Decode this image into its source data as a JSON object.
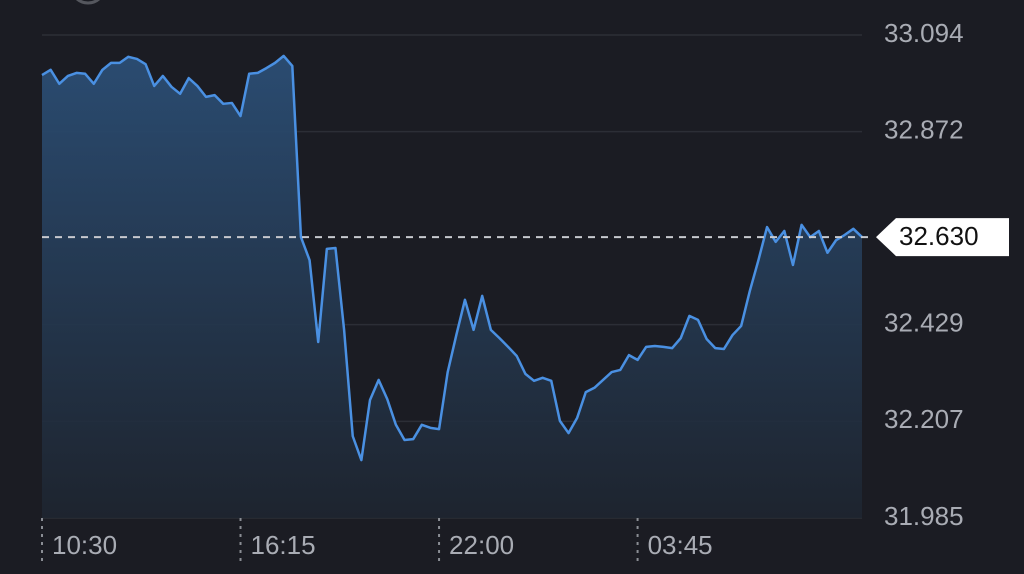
{
  "chart_data": {
    "type": "area",
    "series": [
      {
        "color": "#4a90e2",
        "values": [
          33.002,
          33.014,
          32.982,
          33.0,
          33.007,
          33.005,
          32.982,
          33.014,
          33.03,
          33.03,
          33.044,
          33.039,
          33.027,
          32.977,
          33.0,
          32.975,
          32.959,
          32.995,
          32.977,
          32.952,
          32.956,
          32.936,
          32.938,
          32.908,
          33.005,
          33.007,
          33.018,
          33.03,
          33.046,
          33.023,
          32.63,
          32.577,
          32.389,
          32.603,
          32.605,
          32.417,
          32.173,
          32.118,
          32.256,
          32.302,
          32.258,
          32.199,
          32.164,
          32.166,
          32.199,
          32.192,
          32.189,
          32.32,
          32.405,
          32.486,
          32.417,
          32.495,
          32.417,
          32.398,
          32.378,
          32.357,
          32.316,
          32.3,
          32.307,
          32.3,
          32.208,
          32.18,
          32.215,
          32.274,
          32.284,
          32.302,
          32.32,
          32.325,
          32.359,
          32.348,
          32.378,
          32.38,
          32.378,
          32.375,
          32.398,
          32.449,
          32.44,
          32.396,
          32.375,
          32.373,
          32.405,
          32.426,
          32.506,
          32.577,
          32.653,
          32.619,
          32.644,
          32.566,
          32.658,
          32.63,
          32.644,
          32.594,
          32.623,
          32.635,
          32.649,
          32.63
        ]
      }
    ],
    "x": [
      0,
      15,
      30,
      45,
      60,
      75,
      90,
      105,
      120,
      135,
      150,
      165,
      180,
      195,
      210,
      225,
      240,
      255,
      270,
      285,
      300,
      315,
      330,
      345,
      360,
      375,
      390,
      405,
      420,
      435,
      450,
      465,
      480,
      495,
      510,
      525,
      540,
      555,
      570,
      585,
      600,
      615,
      630,
      645,
      660,
      675,
      690,
      705,
      720,
      735,
      750,
      765,
      780,
      795,
      810,
      825,
      840,
      855,
      870,
      885,
      900,
      915,
      930,
      945,
      960,
      975,
      990,
      1005,
      1020,
      1035,
      1050,
      1065,
      1080,
      1095,
      1110,
      1125,
      1140,
      1155,
      1170,
      1185,
      1200,
      1215,
      1230,
      1245,
      1260,
      1275,
      1290,
      1305,
      1320,
      1335,
      1350,
      1365,
      1380,
      1395,
      1410,
      1425
    ],
    "xlim": [
      0,
      1425
    ],
    "xticks": [
      {
        "value": 0,
        "label": "10:30"
      },
      {
        "value": 345,
        "label": "16:15"
      },
      {
        "value": 690,
        "label": "22:00"
      },
      {
        "value": 1035,
        "label": "03:45"
      }
    ],
    "ylim": [
      31.985,
      33.094
    ],
    "yticks": [
      31.985,
      32.207,
      32.429,
      32.872,
      33.094
    ],
    "last_price": {
      "value": 32.63,
      "label": "32.630"
    },
    "grid": true
  }
}
